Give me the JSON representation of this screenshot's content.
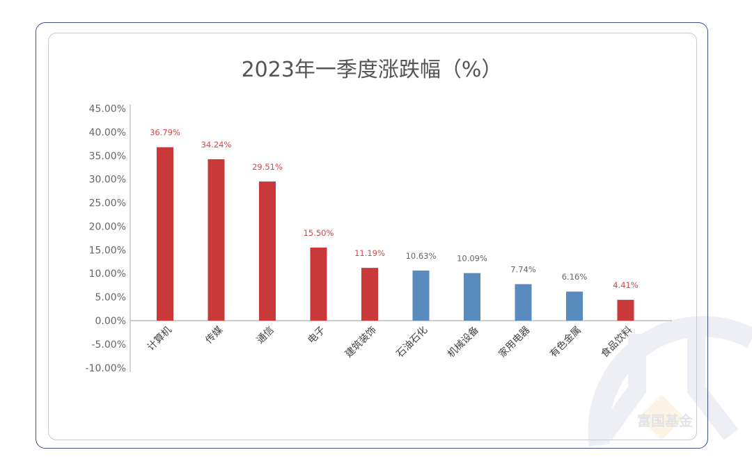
{
  "chart_data": {
    "type": "bar",
    "title": "2023年一季度涨跌幅（%）",
    "categories": [
      "计算机",
      "传媒",
      "通信",
      "电子",
      "建筑装饰",
      "石油石化",
      "机械设备",
      "家用电器",
      "有色金属",
      "食品饮料"
    ],
    "values": [
      36.79,
      34.24,
      29.51,
      15.5,
      11.19,
      10.63,
      10.09,
      7.74,
      6.16,
      4.41
    ],
    "data_labels": [
      "36.79%",
      "34.24%",
      "29.51%",
      "15.50%",
      "11.19%",
      "10.63%",
      "10.09%",
      "7.74%",
      "6.16%",
      "4.41%"
    ],
    "bar_colors": [
      "#c9393a",
      "#c9393a",
      "#c9393a",
      "#c9393a",
      "#c9393a",
      "#5a8bbf",
      "#5a8bbf",
      "#5a8bbf",
      "#5a8bbf",
      "#c9393a"
    ],
    "label_colors": [
      "#d0484b",
      "#d0484b",
      "#d0484b",
      "#d0484b",
      "#d0484b",
      "#666666",
      "#666666",
      "#666666",
      "#666666",
      "#d0484b"
    ],
    "ylim": [
      -10,
      45
    ],
    "yticks": [
      "45.00%",
      "40.00%",
      "35.00%",
      "30.00%",
      "25.00%",
      "20.00%",
      "15.00%",
      "10.00%",
      "5.00%",
      "0.00%",
      "-5.00%",
      "-10.00%"
    ],
    "ytick_values": [
      45,
      40,
      35,
      30,
      25,
      20,
      15,
      10,
      5,
      0,
      -5,
      -10
    ],
    "grid": false,
    "xlabel": "",
    "ylabel": ""
  },
  "watermark": {
    "text": "富国基金"
  }
}
